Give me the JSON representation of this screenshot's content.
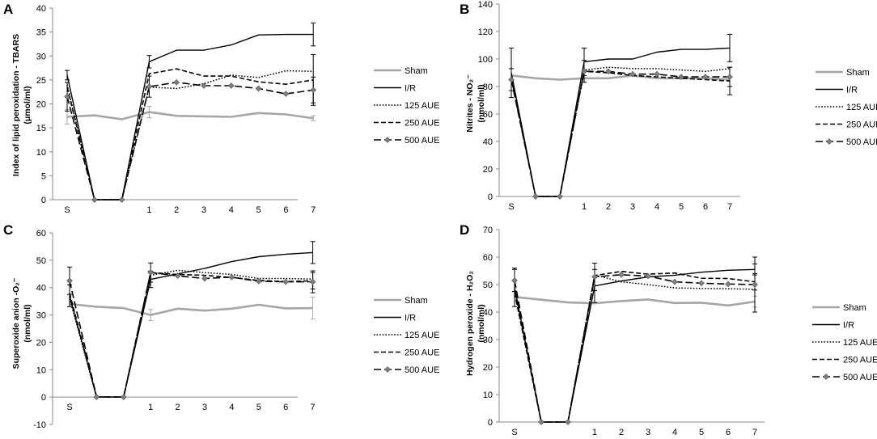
{
  "chart_data": [
    {
      "type": "line",
      "panel": "A",
      "ylabel_lines": [
        "Index of lipid peroxidation - TBARS",
        "(μmol/ml)"
      ],
      "ylim": [
        0,
        40
      ],
      "ytick_step": 5,
      "categories": [
        "S",
        "",
        "",
        "1",
        "2",
        "3",
        "4",
        "5",
        "6",
        "7"
      ],
      "series": [
        {
          "name": "Sham",
          "values": [
            17.3,
            17.6,
            16.8,
            18.3,
            17.5,
            17.4,
            17.3,
            18.1,
            17.8,
            17.0
          ],
          "err": [
            1.5,
            0,
            0,
            1.2,
            0,
            0,
            0,
            0,
            0,
            0.5
          ]
        },
        {
          "name": "I/R",
          "values": [
            26.0,
            0,
            0,
            28.8,
            31.2,
            31.2,
            32.3,
            34.4,
            34.5,
            34.5
          ],
          "err": [
            1.0,
            0,
            0,
            1.3,
            0,
            0,
            0,
            0,
            0,
            2.4
          ]
        },
        {
          "name": "125 AUE",
          "values": [
            24.0,
            0,
            0,
            23.5,
            23.2,
            24.2,
            26.0,
            25.5,
            26.9,
            26.8
          ],
          "err": [
            0,
            0,
            0,
            0,
            0,
            0,
            0,
            0,
            0,
            0
          ]
        },
        {
          "name": "250 AUE",
          "values": [
            23.5,
            0,
            0,
            26.3,
            27.3,
            25.8,
            25.8,
            24.6,
            24.1,
            25.0
          ],
          "err": [
            0,
            0,
            0,
            0,
            0,
            0,
            0,
            0,
            0,
            5.3
          ]
        },
        {
          "name": "500 AUE",
          "values": [
            21.5,
            0,
            0,
            23.6,
            24.5,
            23.8,
            23.8,
            23.2,
            22.1,
            22.9
          ],
          "err": [
            3.0,
            0,
            0,
            2.2,
            0,
            0,
            0,
            0,
            0,
            2.7
          ]
        }
      ]
    },
    {
      "type": "line",
      "panel": "B",
      "ylabel_lines": [
        "Nitrites - NO₂⁻",
        "(nmol/ml)"
      ],
      "ylim": [
        0,
        140
      ],
      "ytick_step": 20,
      "categories": [
        "S",
        "",
        "",
        "1",
        "2",
        "3",
        "4",
        "5",
        "6",
        "7"
      ],
      "series": [
        {
          "name": "Sham",
          "values": [
            88,
            86,
            85,
            86,
            86,
            88,
            86,
            86,
            86,
            85
          ],
          "err": [
            0,
            0,
            0,
            0,
            0,
            0,
            0,
            0,
            0,
            0
          ]
        },
        {
          "name": "I/R",
          "values": [
            90,
            0,
            0,
            98,
            100,
            100,
            105,
            107,
            107,
            108
          ],
          "err": [
            18,
            0,
            0,
            10,
            0,
            0,
            0,
            0,
            0,
            10
          ]
        },
        {
          "name": "125 AUE",
          "values": [
            87,
            0,
            0,
            92,
            94,
            93,
            93,
            92,
            91,
            93
          ],
          "err": [
            0,
            0,
            0,
            0,
            0,
            0,
            0,
            0,
            0,
            0
          ]
        },
        {
          "name": "250 AUE",
          "values": [
            86,
            0,
            0,
            91,
            90,
            88,
            87,
            86,
            85,
            84
          ],
          "err": [
            0,
            0,
            0,
            0,
            0,
            0,
            0,
            0,
            0,
            10
          ]
        },
        {
          "name": "500 AUE",
          "values": [
            85,
            0,
            0,
            91,
            91,
            89,
            89,
            87,
            87,
            87
          ],
          "err": [
            8,
            0,
            0,
            8,
            0,
            0,
            0,
            0,
            0,
            7
          ]
        }
      ]
    },
    {
      "type": "line",
      "panel": "C",
      "ylabel_lines": [
        "Superoxide anion -O₂⁻",
        "(nmol/ml)"
      ],
      "ylim": [
        -10,
        60
      ],
      "ytick_step": 10,
      "categories": [
        "S",
        "",
        "",
        "1",
        "2",
        "3",
        "4",
        "5",
        "6",
        "7"
      ],
      "series": [
        {
          "name": "Sham",
          "values": [
            34,
            33,
            32.5,
            30,
            32.3,
            31.6,
            32.3,
            33.7,
            32.4,
            32.5
          ],
          "err": [
            0,
            0,
            0,
            2,
            0,
            0,
            0,
            0,
            0,
            4
          ]
        },
        {
          "name": "I/R",
          "values": [
            37,
            0,
            0,
            43,
            45,
            47,
            49.5,
            51.3,
            52.2,
            52.8
          ],
          "err": [
            4,
            0,
            0,
            3,
            0,
            0,
            0,
            0,
            0,
            4
          ]
        },
        {
          "name": "125 AUE",
          "values": [
            36,
            0,
            0,
            44.5,
            46.3,
            45.5,
            44.8,
            43.3,
            43.3,
            43.1
          ],
          "err": [
            0,
            0,
            0,
            0,
            0,
            0,
            0,
            0,
            0,
            0
          ]
        },
        {
          "name": "250 AUE",
          "values": [
            38,
            0,
            0,
            45.5,
            44.8,
            44.5,
            43.7,
            42.6,
            42.2,
            42.5
          ],
          "err": [
            0,
            0,
            0,
            0,
            0,
            0,
            0,
            0,
            0,
            3
          ]
        },
        {
          "name": "500 AUE",
          "values": [
            42.5,
            0,
            0,
            45.5,
            44.3,
            43.3,
            43.8,
            42.3,
            42.1,
            42.1
          ],
          "err": [
            5,
            0,
            0,
            3.5,
            0,
            0,
            0,
            0,
            0,
            4
          ]
        }
      ]
    },
    {
      "type": "line",
      "panel": "D",
      "ylabel_lines": [
        "Hydrogen peroxide - H₂O₂",
        "(nmol/ml)"
      ],
      "ylim": [
        0,
        70
      ],
      "ytick_step": 10,
      "categories": [
        "S",
        "",
        "",
        "1",
        "2",
        "3",
        "4",
        "5",
        "6",
        "7"
      ],
      "series": [
        {
          "name": "Sham",
          "values": [
            45.5,
            44.5,
            43.5,
            43.2,
            44.0,
            44.6,
            43.3,
            43.4,
            42.4,
            43.8
          ],
          "err": [
            0,
            0,
            0,
            0,
            0,
            0,
            0,
            0,
            0,
            2
          ]
        },
        {
          "name": "I/R",
          "values": [
            49,
            0,
            0,
            49.5,
            51.3,
            52.8,
            53.4,
            54.5,
            55.2,
            55.5
          ],
          "err": [
            7,
            0,
            0,
            6,
            0,
            0,
            0,
            0,
            0,
            2
          ]
        },
        {
          "name": "125 AUE",
          "values": [
            48,
            0,
            0,
            53.5,
            51.0,
            50.0,
            48.8,
            48.6,
            48.5,
            48.3
          ],
          "err": [
            0,
            0,
            0,
            0,
            0,
            0,
            0,
            0,
            0,
            0
          ]
        },
        {
          "name": "250 AUE",
          "values": [
            47,
            0,
            0,
            53.3,
            54.8,
            53.8,
            54.2,
            52.3,
            52.2,
            51.0
          ],
          "err": [
            0,
            0,
            0,
            0,
            0,
            0,
            0,
            0,
            0,
            3
          ]
        },
        {
          "name": "500 AUE",
          "values": [
            51.5,
            0,
            0,
            52.8,
            53.6,
            53.1,
            51.0,
            50.5,
            50.2,
            50.0
          ],
          "err": [
            4,
            0,
            0,
            5,
            0,
            0,
            0,
            0,
            0,
            10
          ]
        }
      ]
    }
  ],
  "legend": [
    "Sham",
    "I/R",
    "125 AUE",
    "250 AUE",
    "500 AUE"
  ],
  "series_colors": {
    "Sham": "#a6a6a6",
    "I/R": "#000000",
    "125 AUE": "#000000",
    "250 AUE": "#000000",
    "500 AUE": "#000000"
  },
  "marker_color": "#7f7f7f"
}
